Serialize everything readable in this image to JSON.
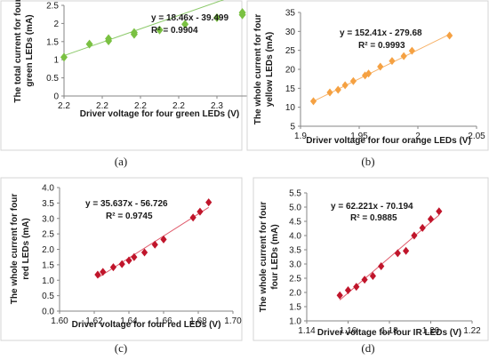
{
  "chart_data": [
    {
      "type": "scatter",
      "panel_label": "(a)",
      "xlabel": "Driver voltage for four green LEDs  (V)",
      "ylabel": [
        "The total current for four",
        "green LEDs (mA)"
      ],
      "xlim": [
        2.2,
        2.3
      ],
      "ylim": [
        0,
        2.5
      ],
      "xticks": [
        "2.2",
        "2.2",
        "2.2",
        "2.2",
        "2.3",
        "2.3"
      ],
      "yticks": [
        "0",
        "0.5",
        "1",
        "1.5",
        "2",
        "2.5"
      ],
      "grid": false,
      "marker_color": "#7ac142",
      "line_color": "#8cc96a",
      "equation": "y = 18.46x - 39.499",
      "r2": "R² = 0.9904",
      "trend": {
        "slope": 18.46,
        "intercept": -39.499
      },
      "series": [
        {
          "x": [
            2.2,
            2.2133,
            2.2233,
            2.2233,
            2.2367,
            2.2367,
            2.25,
            2.2633,
            2.28,
            2.2933,
            2.2933
          ],
          "y": [
            1.07,
            1.43,
            1.52,
            1.58,
            1.7,
            1.75,
            1.82,
            1.98,
            2.16,
            2.24,
            2.3
          ]
        }
      ]
    },
    {
      "type": "scatter",
      "panel_label": "(b)",
      "xlabel": "Driver voltage for four orange LEDs  (V)",
      "ylabel": [
        "The whole current for four",
        "yellow LEDs (mA)"
      ],
      "xlim": [
        1.9,
        2.05
      ],
      "ylim": [
        5,
        35
      ],
      "xticks": [
        "1.9",
        "1.95",
        "2",
        "2.05"
      ],
      "yticks": [
        "5",
        "10",
        "15",
        "20",
        "25",
        "30",
        "35"
      ],
      "grid": false,
      "marker_color": "#f5a142",
      "line_color": "#f7b36a",
      "equation": "y = 152.41x - 279.68",
      "r2": "R² = 0.9993",
      "trend": {
        "slope": 152.41,
        "intercept": -279.68
      },
      "series": [
        {
          "x": [
            1.911,
            1.925,
            1.932,
            1.938,
            1.945,
            1.955,
            1.958,
            1.968,
            1.978,
            1.988,
            1.995,
            2.027
          ],
          "y": [
            11.6,
            13.9,
            14.6,
            15.8,
            16.9,
            18.4,
            18.9,
            20.7,
            22.2,
            23.5,
            24.9,
            28.9
          ]
        }
      ]
    },
    {
      "type": "scatter",
      "panel_label": "(c)",
      "xlabel": "Driver voltage for four red LEDs (V)",
      "ylabel": [
        "The whole current for four",
        "red LEDs (mA)"
      ],
      "xlim": [
        1.6,
        1.7
      ],
      "ylim": [
        0,
        4
      ],
      "xticks": [
        "1.60",
        "1.62",
        "1.64",
        "1.66",
        "1.68",
        "1.70"
      ],
      "yticks": [
        "0.0",
        "0.5",
        "1.0",
        "1.5",
        "2.0",
        "2.5",
        "3.0",
        "3.5",
        "4.0"
      ],
      "grid": false,
      "marker_color": "#c0152b",
      "line_color": "#e05a6b",
      "equation": "y = 35.637x - 56.726",
      "r2": "R² = 0.9745",
      "trend": {
        "slope": 35.637,
        "intercept": -56.726
      },
      "series": [
        {
          "x": [
            1.622,
            1.625,
            1.631,
            1.636,
            1.64,
            1.643,
            1.649,
            1.655,
            1.66,
            1.677,
            1.681,
            1.686
          ],
          "y": [
            1.18,
            1.27,
            1.42,
            1.52,
            1.64,
            1.75,
            1.9,
            2.15,
            2.32,
            3.03,
            3.22,
            3.52
          ]
        }
      ]
    },
    {
      "type": "scatter",
      "panel_label": "(d)",
      "xlabel": "Driver voltage for four IR LEDs (V)",
      "ylabel": [
        "The whole current for four",
        "four LEDs  (mA)"
      ],
      "xlim": [
        1.14,
        1.22
      ],
      "ylim": [
        1.0,
        5.5
      ],
      "xticks": [
        "1.14",
        "1.16",
        "1.18",
        "1.20",
        "1.22"
      ],
      "yticks": [
        "1.0",
        "1.5",
        "2.0",
        "2.5",
        "3.0",
        "3.5",
        "4.0",
        "4.5",
        "5.0",
        "5.5"
      ],
      "grid": false,
      "marker_color": "#c0152b",
      "line_color": "#e05a6b",
      "equation": "y = 62.221x - 70.194",
      "r2": "R² = 0.9885",
      "trend": {
        "slope": 62.221,
        "intercept": -70.194
      },
      "series": [
        {
          "x": [
            1.156,
            1.16,
            1.164,
            1.168,
            1.172,
            1.176,
            1.184,
            1.188,
            1.192,
            1.196,
            1.2,
            1.204
          ],
          "y": [
            1.9,
            2.08,
            2.2,
            2.45,
            2.58,
            2.92,
            3.38,
            3.46,
            4.0,
            4.27,
            4.58,
            4.85
          ]
        }
      ]
    }
  ]
}
